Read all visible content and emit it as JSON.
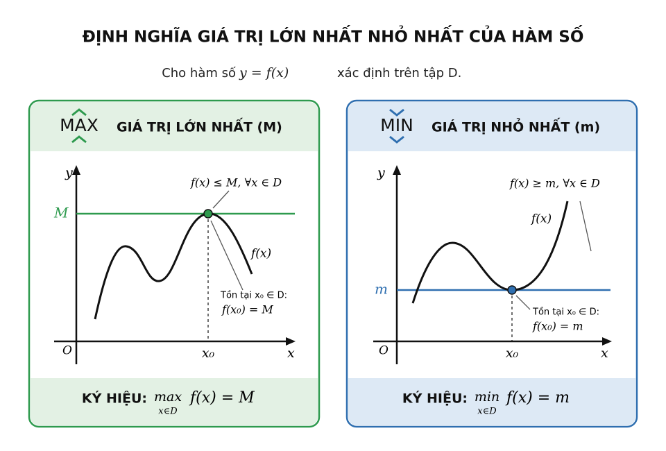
{
  "header": {
    "title": "ĐỊNH NGHĨA GIÁ TRỊ LỚN NHẤT NHỎ NHẤT CỦA HÀM SỐ",
    "subtitle": [
      "Cho hàm số",
      "y = f(x)",
      "xác định trên tập D."
    ]
  },
  "max_panel": {
    "icon": "MAX",
    "heading": "GIÁ TRỊ LỚN NHẤT (M)",
    "graph": {
      "y_label": "y",
      "x_label": "x",
      "origin": "O",
      "level_label": "M",
      "x0_label": "x₀",
      "condition": "f(x) ≤ M, ∀x ∈ D",
      "function_label": "f(x)",
      "existence": "Tồn tại x₀ ∈ D:",
      "existence_equation": "f(x₀) = M"
    },
    "notation": {
      "label": "KÝ HIỆU:",
      "operator": "max",
      "subscript": "x∈D",
      "expression": "f(x) = M"
    }
  },
  "min_panel": {
    "icon": "MIN",
    "heading": "GIÁ TRỊ NHỎ NHẤT (m)",
    "graph": {
      "y_label": "y",
      "x_label": "x",
      "origin": "O",
      "level_label": "m",
      "x0_label": "x₀",
      "condition": "f(x) ≥ m, ∀x ∈ D",
      "function_label": "f(x)",
      "existence": "Tồn tại x₀ ∈ D:",
      "existence_equation": "f(x₀) = m"
    },
    "notation": {
      "label": "KÝ HIỆU:",
      "operator": "min",
      "subscript": "x∈D",
      "expression": "f(x) = m"
    }
  }
}
